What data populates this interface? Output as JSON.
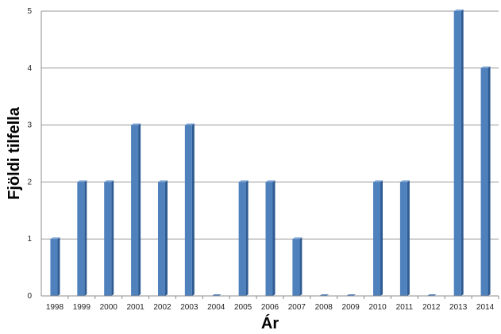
{
  "chart_data": {
    "type": "bar",
    "title": "",
    "xlabel": "Ár",
    "ylabel": "Fjöldi tilfella",
    "categories": [
      "1998",
      "1999",
      "2000",
      "2001",
      "2002",
      "2003",
      "2004",
      "2005",
      "2006",
      "2007",
      "2008",
      "2009",
      "2010",
      "2011",
      "2012",
      "2013",
      "2014"
    ],
    "values": [
      1,
      2,
      2,
      3,
      2,
      3,
      0,
      2,
      2,
      1,
      0,
      0,
      2,
      2,
      0,
      5,
      4
    ],
    "ylim": [
      0,
      5
    ],
    "yticks": [
      "0",
      "1",
      "2",
      "3",
      "4",
      "5"
    ],
    "grid": true,
    "legend": "none",
    "colors": {
      "bar_front": "#4f81bd",
      "bar_side": "#2f5b93",
      "bar_top": "#7fa6d6",
      "grid": "#9a9a9a",
      "axis": "#8c8c8c"
    }
  }
}
